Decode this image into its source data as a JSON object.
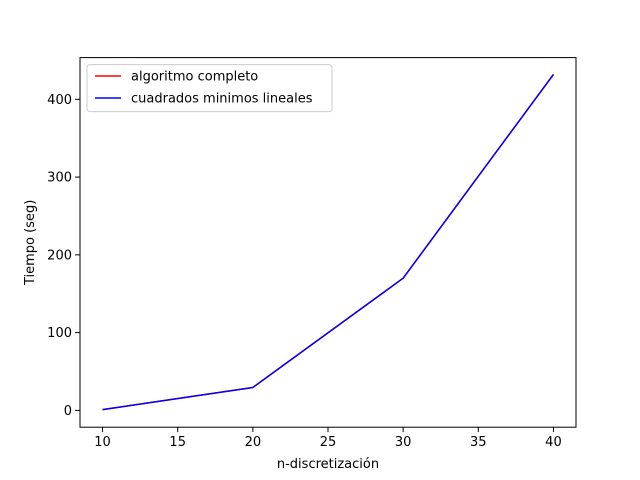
{
  "chart_data": {
    "type": "line",
    "title": "",
    "xlabel": "n-discretización",
    "ylabel": "Tiempo (seg)",
    "xlim": [
      8.5,
      41.5
    ],
    "ylim": [
      -21.6,
      453.6
    ],
    "xticks": [
      10,
      15,
      20,
      25,
      30,
      35,
      40
    ],
    "yticks": [
      0,
      100,
      200,
      300,
      400
    ],
    "grid": false,
    "legend_position": "upper-left",
    "x": [
      10,
      20,
      30,
      40
    ],
    "series": [
      {
        "name": "algoritmo completo",
        "color": "#ff0000",
        "values": [
          1,
          29.5,
          170,
          432
        ]
      },
      {
        "name": "cuadrados minimos lineales",
        "color": "#0000ff",
        "values": [
          1,
          29.5,
          170,
          432
        ]
      }
    ]
  }
}
